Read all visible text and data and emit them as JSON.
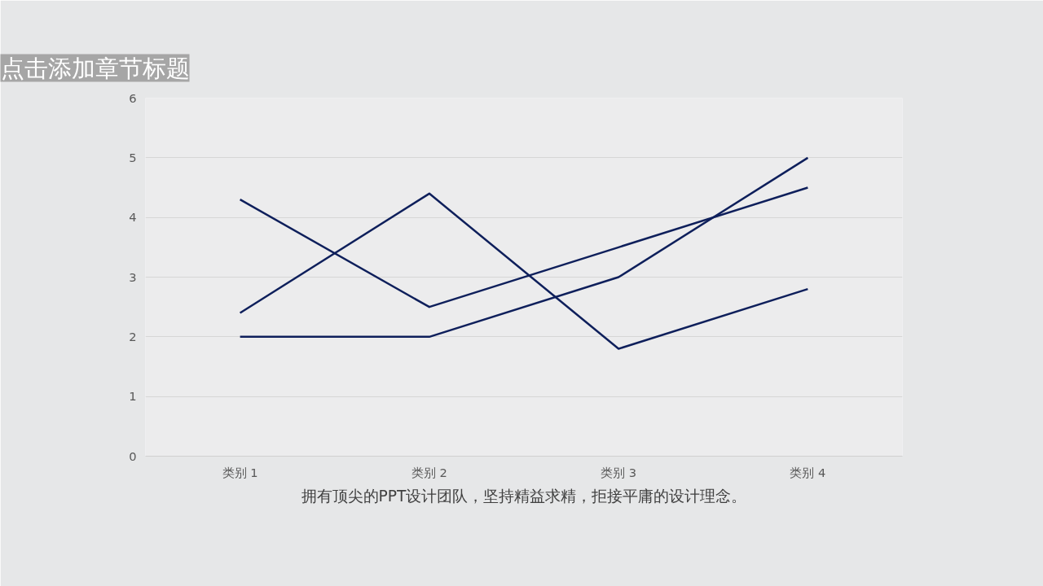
{
  "chart_data": {
    "type": "line",
    "title": "点击添加章节标题",
    "categories": [
      "类别 1",
      "类别 2",
      "类别 3",
      "类别 4"
    ],
    "series": [
      {
        "color": "#0e1f5b",
        "values": [
          4.3,
          2.5,
          3.5,
          4.5
        ]
      },
      {
        "color": "#0e1f5b",
        "values": [
          2.4,
          4.4,
          1.8,
          2.8
        ]
      },
      {
        "color": "#0e1f5b",
        "values": [
          2,
          2,
          3,
          5
        ]
      }
    ],
    "ylim": [
      0,
      6
    ],
    "yticks": [
      0,
      1,
      2,
      3,
      4,
      5,
      6
    ],
    "grid": "y",
    "marker": "none",
    "line_style": "solid",
    "annotations": [
      "拥有顶尖的PPT设计团队，坚持精益求精，拒接平庸的设计理念。"
    ]
  }
}
